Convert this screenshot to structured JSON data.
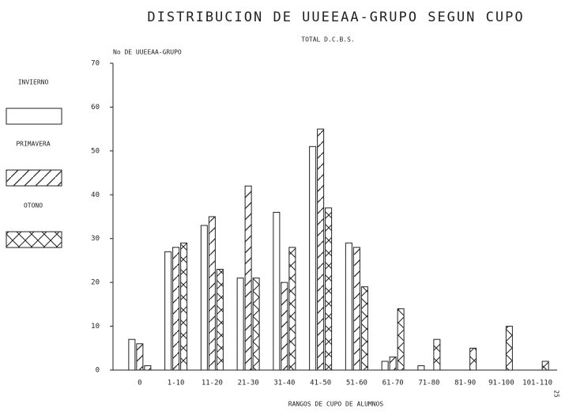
{
  "chart_data": {
    "type": "bar",
    "title": "DISTRIBUCION DE UUEEAA-GRUPO SEGUN CUPO",
    "subtitle": "TOTAL D.C.B.S.",
    "y_label": "No DE UUEEAA-GRUPO",
    "x_label": "RANGOS DE CUPO DE ALUMNOS",
    "categories": [
      "0",
      "1-10",
      "11-20",
      "21-30",
      "31-40",
      "41-50",
      "51-60",
      "61-70",
      "71-80",
      "81-90",
      "91-100",
      "101-110"
    ],
    "series": [
      {
        "name": "INVIERNO",
        "color": "#ffffff",
        "hatch": "none",
        "values": [
          7,
          27,
          33,
          21,
          36,
          51,
          29,
          2,
          1,
          0,
          0,
          0
        ]
      },
      {
        "name": "PRIMAVERA",
        "color": "#ffffff",
        "hatch": "diagonal",
        "values": [
          6,
          28,
          35,
          42,
          20,
          55,
          28,
          3,
          0,
          0,
          0,
          0
        ]
      },
      {
        "name": "OTONO",
        "color": "#ffffff",
        "hatch": "cross",
        "values": [
          1,
          29,
          23,
          21,
          28,
          37,
          19,
          14,
          7,
          5,
          10,
          2
        ]
      }
    ],
    "ylim": [
      0,
      70
    ],
    "yticks": [
      0,
      10,
      20,
      30,
      40,
      50,
      60,
      70
    ],
    "grid": false,
    "legend": "left"
  },
  "page_number": "25"
}
